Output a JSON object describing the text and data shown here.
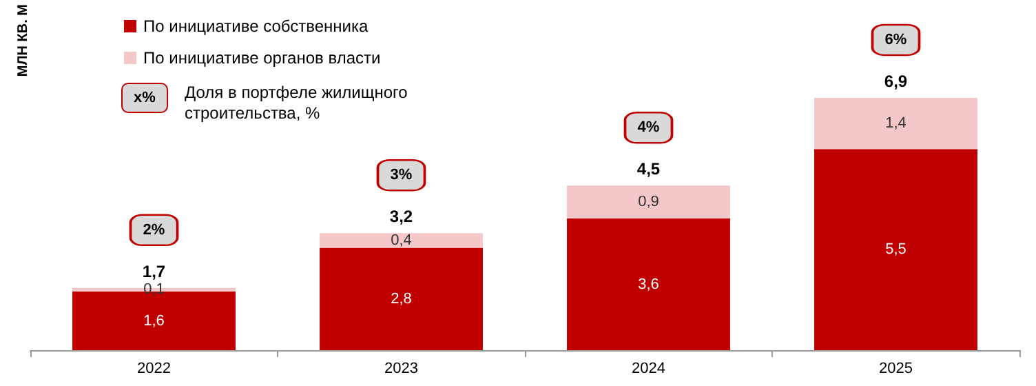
{
  "chart_data": {
    "type": "bar",
    "stacked": true,
    "ylabel": "МЛН КВ. М",
    "legend": "top left",
    "categories": [
      "2022",
      "2023",
      "2024",
      "2025"
    ],
    "series": [
      {
        "name": "По инициативе собственника",
        "color": "#c00000",
        "values": [
          1.6,
          2.8,
          3.6,
          5.5
        ],
        "value_labels": [
          "1,6",
          "2,8",
          "3,6",
          "5,5"
        ]
      },
      {
        "name": "По инициативе органов власти",
        "color": "#f4c7c9",
        "values": [
          0.1,
          0.4,
          0.9,
          1.4
        ],
        "value_labels": [
          "0,1",
          "0,4",
          "0,9",
          "1,4"
        ]
      }
    ],
    "totals": [
      "1,7",
      "3,2",
      "4,5",
      "6,9"
    ],
    "annotations": [
      "2%",
      "3%",
      "4%",
      "6%",
      "x%",
      "Доля в портфеле жилищного строительства, %"
    ]
  }
}
